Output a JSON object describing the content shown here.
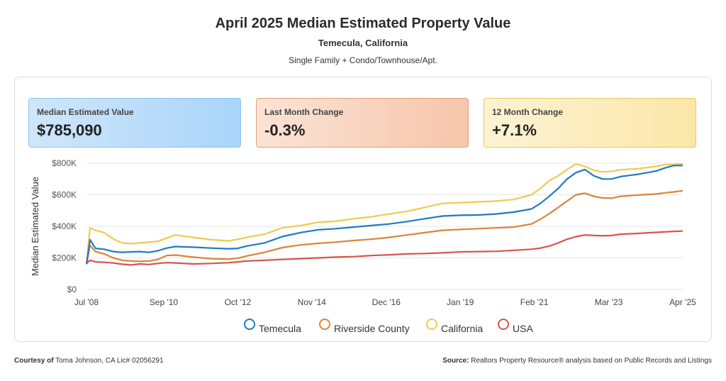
{
  "header": {
    "title": "April 2025 Median Estimated Property Value",
    "location": "Temecula, California",
    "property_types": "Single Family + Condo/Townhouse/Apt."
  },
  "cards": [
    {
      "label": "Median Estimated Value",
      "value": "$785,090",
      "color": "#a9d5fa"
    },
    {
      "label": "Last Month Change",
      "value": "-0.3%",
      "color": "#f6c6aa"
    },
    {
      "label": "12 Month Change",
      "value": "+7.1%",
      "color": "#fbe7a9"
    }
  ],
  "footer": {
    "courtesy_label": "Courtesy of",
    "courtesy_text": "Toma Johnson, CA Lic# 02056291",
    "source_label": "Source:",
    "source_text": "Realtors Property Resource® analysis based on Public Records and Listings"
  },
  "chart_data": {
    "type": "line",
    "ylabel": "Median Estimated Value",
    "xlabel": "",
    "ylim": [
      0,
      800000
    ],
    "y_ticks": [
      "$0",
      "$200K",
      "$400K",
      "$600K",
      "$800K"
    ],
    "x_range": [
      2008.5,
      2025.25
    ],
    "x_ticks": [
      {
        "label": "Jul '08",
        "x": 2008.5
      },
      {
        "label": "Sep '10",
        "x": 2010.67
      },
      {
        "label": "Oct '12",
        "x": 2012.75
      },
      {
        "label": "Nov '14",
        "x": 2014.83
      },
      {
        "label": "Dec '16",
        "x": 2016.92
      },
      {
        "label": "Jan '19",
        "x": 2019.0
      },
      {
        "label": "Feb '21",
        "x": 2021.08
      },
      {
        "label": "Mar '23",
        "x": 2023.17
      },
      {
        "label": "Apr '25",
        "x": 2025.25
      }
    ],
    "legend_position": "bottom-center",
    "series": [
      {
        "name": "Temecula",
        "color": "#1f7bbf",
        "points": [
          [
            2008.5,
            160000
          ],
          [
            2008.6,
            315000
          ],
          [
            2008.75,
            260000
          ],
          [
            2009.0,
            255000
          ],
          [
            2009.25,
            240000
          ],
          [
            2009.5,
            235000
          ],
          [
            2009.75,
            238000
          ],
          [
            2010.0,
            240000
          ],
          [
            2010.25,
            235000
          ],
          [
            2010.5,
            245000
          ],
          [
            2010.75,
            262000
          ],
          [
            2011.0,
            272000
          ],
          [
            2011.5,
            268000
          ],
          [
            2012.0,
            262000
          ],
          [
            2012.5,
            258000
          ],
          [
            2012.75,
            260000
          ],
          [
            2013.0,
            275000
          ],
          [
            2013.5,
            295000
          ],
          [
            2014.0,
            335000
          ],
          [
            2014.5,
            360000
          ],
          [
            2015.0,
            378000
          ],
          [
            2015.5,
            385000
          ],
          [
            2016.0,
            395000
          ],
          [
            2016.5,
            405000
          ],
          [
            2017.0,
            415000
          ],
          [
            2017.5,
            430000
          ],
          [
            2018.0,
            448000
          ],
          [
            2018.5,
            465000
          ],
          [
            2019.0,
            470000
          ],
          [
            2019.5,
            472000
          ],
          [
            2020.0,
            478000
          ],
          [
            2020.5,
            490000
          ],
          [
            2021.0,
            510000
          ],
          [
            2021.25,
            545000
          ],
          [
            2021.5,
            590000
          ],
          [
            2021.75,
            640000
          ],
          [
            2022.0,
            700000
          ],
          [
            2022.25,
            740000
          ],
          [
            2022.5,
            760000
          ],
          [
            2022.75,
            720000
          ],
          [
            2023.0,
            700000
          ],
          [
            2023.25,
            700000
          ],
          [
            2023.5,
            715000
          ],
          [
            2024.0,
            730000
          ],
          [
            2024.5,
            750000
          ],
          [
            2024.75,
            770000
          ],
          [
            2025.0,
            785000
          ],
          [
            2025.25,
            785090
          ]
        ]
      },
      {
        "name": "Riverside County",
        "color": "#d9853b",
        "points": [
          [
            2008.5,
            160000
          ],
          [
            2008.6,
            280000
          ],
          [
            2008.75,
            240000
          ],
          [
            2009.0,
            225000
          ],
          [
            2009.25,
            200000
          ],
          [
            2009.5,
            185000
          ],
          [
            2009.75,
            180000
          ],
          [
            2010.0,
            178000
          ],
          [
            2010.25,
            180000
          ],
          [
            2010.5,
            190000
          ],
          [
            2010.75,
            215000
          ],
          [
            2011.0,
            218000
          ],
          [
            2011.5,
            205000
          ],
          [
            2012.0,
            195000
          ],
          [
            2012.5,
            192000
          ],
          [
            2012.75,
            198000
          ],
          [
            2013.0,
            212000
          ],
          [
            2013.5,
            235000
          ],
          [
            2014.0,
            265000
          ],
          [
            2014.5,
            282000
          ],
          [
            2015.0,
            292000
          ],
          [
            2015.5,
            300000
          ],
          [
            2016.0,
            310000
          ],
          [
            2016.5,
            318000
          ],
          [
            2017.0,
            330000
          ],
          [
            2017.5,
            345000
          ],
          [
            2018.0,
            360000
          ],
          [
            2018.5,
            375000
          ],
          [
            2019.0,
            380000
          ],
          [
            2019.5,
            385000
          ],
          [
            2020.0,
            390000
          ],
          [
            2020.5,
            395000
          ],
          [
            2021.0,
            415000
          ],
          [
            2021.25,
            445000
          ],
          [
            2021.5,
            480000
          ],
          [
            2021.75,
            520000
          ],
          [
            2022.0,
            560000
          ],
          [
            2022.25,
            600000
          ],
          [
            2022.5,
            610000
          ],
          [
            2022.75,
            590000
          ],
          [
            2023.0,
            580000
          ],
          [
            2023.25,
            578000
          ],
          [
            2023.5,
            590000
          ],
          [
            2024.0,
            598000
          ],
          [
            2024.5,
            605000
          ],
          [
            2024.75,
            612000
          ],
          [
            2025.0,
            618000
          ],
          [
            2025.25,
            625000
          ]
        ]
      },
      {
        "name": "California",
        "color": "#f2c94c",
        "points": [
          [
            2008.5,
            160000
          ],
          [
            2008.6,
            390000
          ],
          [
            2008.75,
            375000
          ],
          [
            2009.0,
            360000
          ],
          [
            2009.25,
            320000
          ],
          [
            2009.5,
            295000
          ],
          [
            2009.75,
            290000
          ],
          [
            2010.0,
            295000
          ],
          [
            2010.25,
            300000
          ],
          [
            2010.5,
            305000
          ],
          [
            2010.75,
            325000
          ],
          [
            2011.0,
            345000
          ],
          [
            2011.5,
            330000
          ],
          [
            2012.0,
            315000
          ],
          [
            2012.5,
            308000
          ],
          [
            2012.75,
            318000
          ],
          [
            2013.0,
            330000
          ],
          [
            2013.5,
            350000
          ],
          [
            2014.0,
            390000
          ],
          [
            2014.5,
            405000
          ],
          [
            2015.0,
            425000
          ],
          [
            2015.5,
            432000
          ],
          [
            2016.0,
            448000
          ],
          [
            2016.5,
            460000
          ],
          [
            2017.0,
            478000
          ],
          [
            2017.5,
            495000
          ],
          [
            2018.0,
            520000
          ],
          [
            2018.5,
            545000
          ],
          [
            2019.0,
            550000
          ],
          [
            2019.5,
            555000
          ],
          [
            2020.0,
            560000
          ],
          [
            2020.5,
            570000
          ],
          [
            2021.0,
            600000
          ],
          [
            2021.25,
            640000
          ],
          [
            2021.5,
            690000
          ],
          [
            2021.75,
            720000
          ],
          [
            2022.0,
            760000
          ],
          [
            2022.25,
            795000
          ],
          [
            2022.5,
            780000
          ],
          [
            2022.75,
            755000
          ],
          [
            2023.0,
            745000
          ],
          [
            2023.25,
            748000
          ],
          [
            2023.5,
            758000
          ],
          [
            2024.0,
            765000
          ],
          [
            2024.5,
            780000
          ],
          [
            2024.75,
            790000
          ],
          [
            2025.0,
            792000
          ],
          [
            2025.25,
            795000
          ]
        ]
      },
      {
        "name": "USA",
        "color": "#d9534f",
        "points": [
          [
            2008.5,
            165000
          ],
          [
            2008.6,
            185000
          ],
          [
            2008.75,
            175000
          ],
          [
            2009.0,
            172000
          ],
          [
            2009.25,
            168000
          ],
          [
            2009.5,
            160000
          ],
          [
            2009.75,
            155000
          ],
          [
            2010.0,
            162000
          ],
          [
            2010.25,
            158000
          ],
          [
            2010.5,
            165000
          ],
          [
            2010.75,
            170000
          ],
          [
            2011.0,
            168000
          ],
          [
            2011.5,
            162000
          ],
          [
            2012.0,
            165000
          ],
          [
            2012.5,
            170000
          ],
          [
            2012.75,
            175000
          ],
          [
            2013.0,
            180000
          ],
          [
            2013.5,
            185000
          ],
          [
            2014.0,
            190000
          ],
          [
            2014.5,
            195000
          ],
          [
            2015.0,
            200000
          ],
          [
            2015.5,
            205000
          ],
          [
            2016.0,
            208000
          ],
          [
            2016.5,
            215000
          ],
          [
            2017.0,
            220000
          ],
          [
            2017.5,
            225000
          ],
          [
            2018.0,
            228000
          ],
          [
            2018.5,
            232000
          ],
          [
            2019.0,
            238000
          ],
          [
            2019.5,
            240000
          ],
          [
            2020.0,
            242000
          ],
          [
            2020.5,
            248000
          ],
          [
            2021.0,
            255000
          ],
          [
            2021.25,
            262000
          ],
          [
            2021.5,
            275000
          ],
          [
            2021.75,
            295000
          ],
          [
            2022.0,
            318000
          ],
          [
            2022.25,
            335000
          ],
          [
            2022.5,
            345000
          ],
          [
            2022.75,
            342000
          ],
          [
            2023.0,
            340000
          ],
          [
            2023.25,
            342000
          ],
          [
            2023.5,
            350000
          ],
          [
            2024.0,
            355000
          ],
          [
            2024.5,
            362000
          ],
          [
            2024.75,
            365000
          ],
          [
            2025.0,
            368000
          ],
          [
            2025.25,
            370000
          ]
        ]
      }
    ]
  }
}
